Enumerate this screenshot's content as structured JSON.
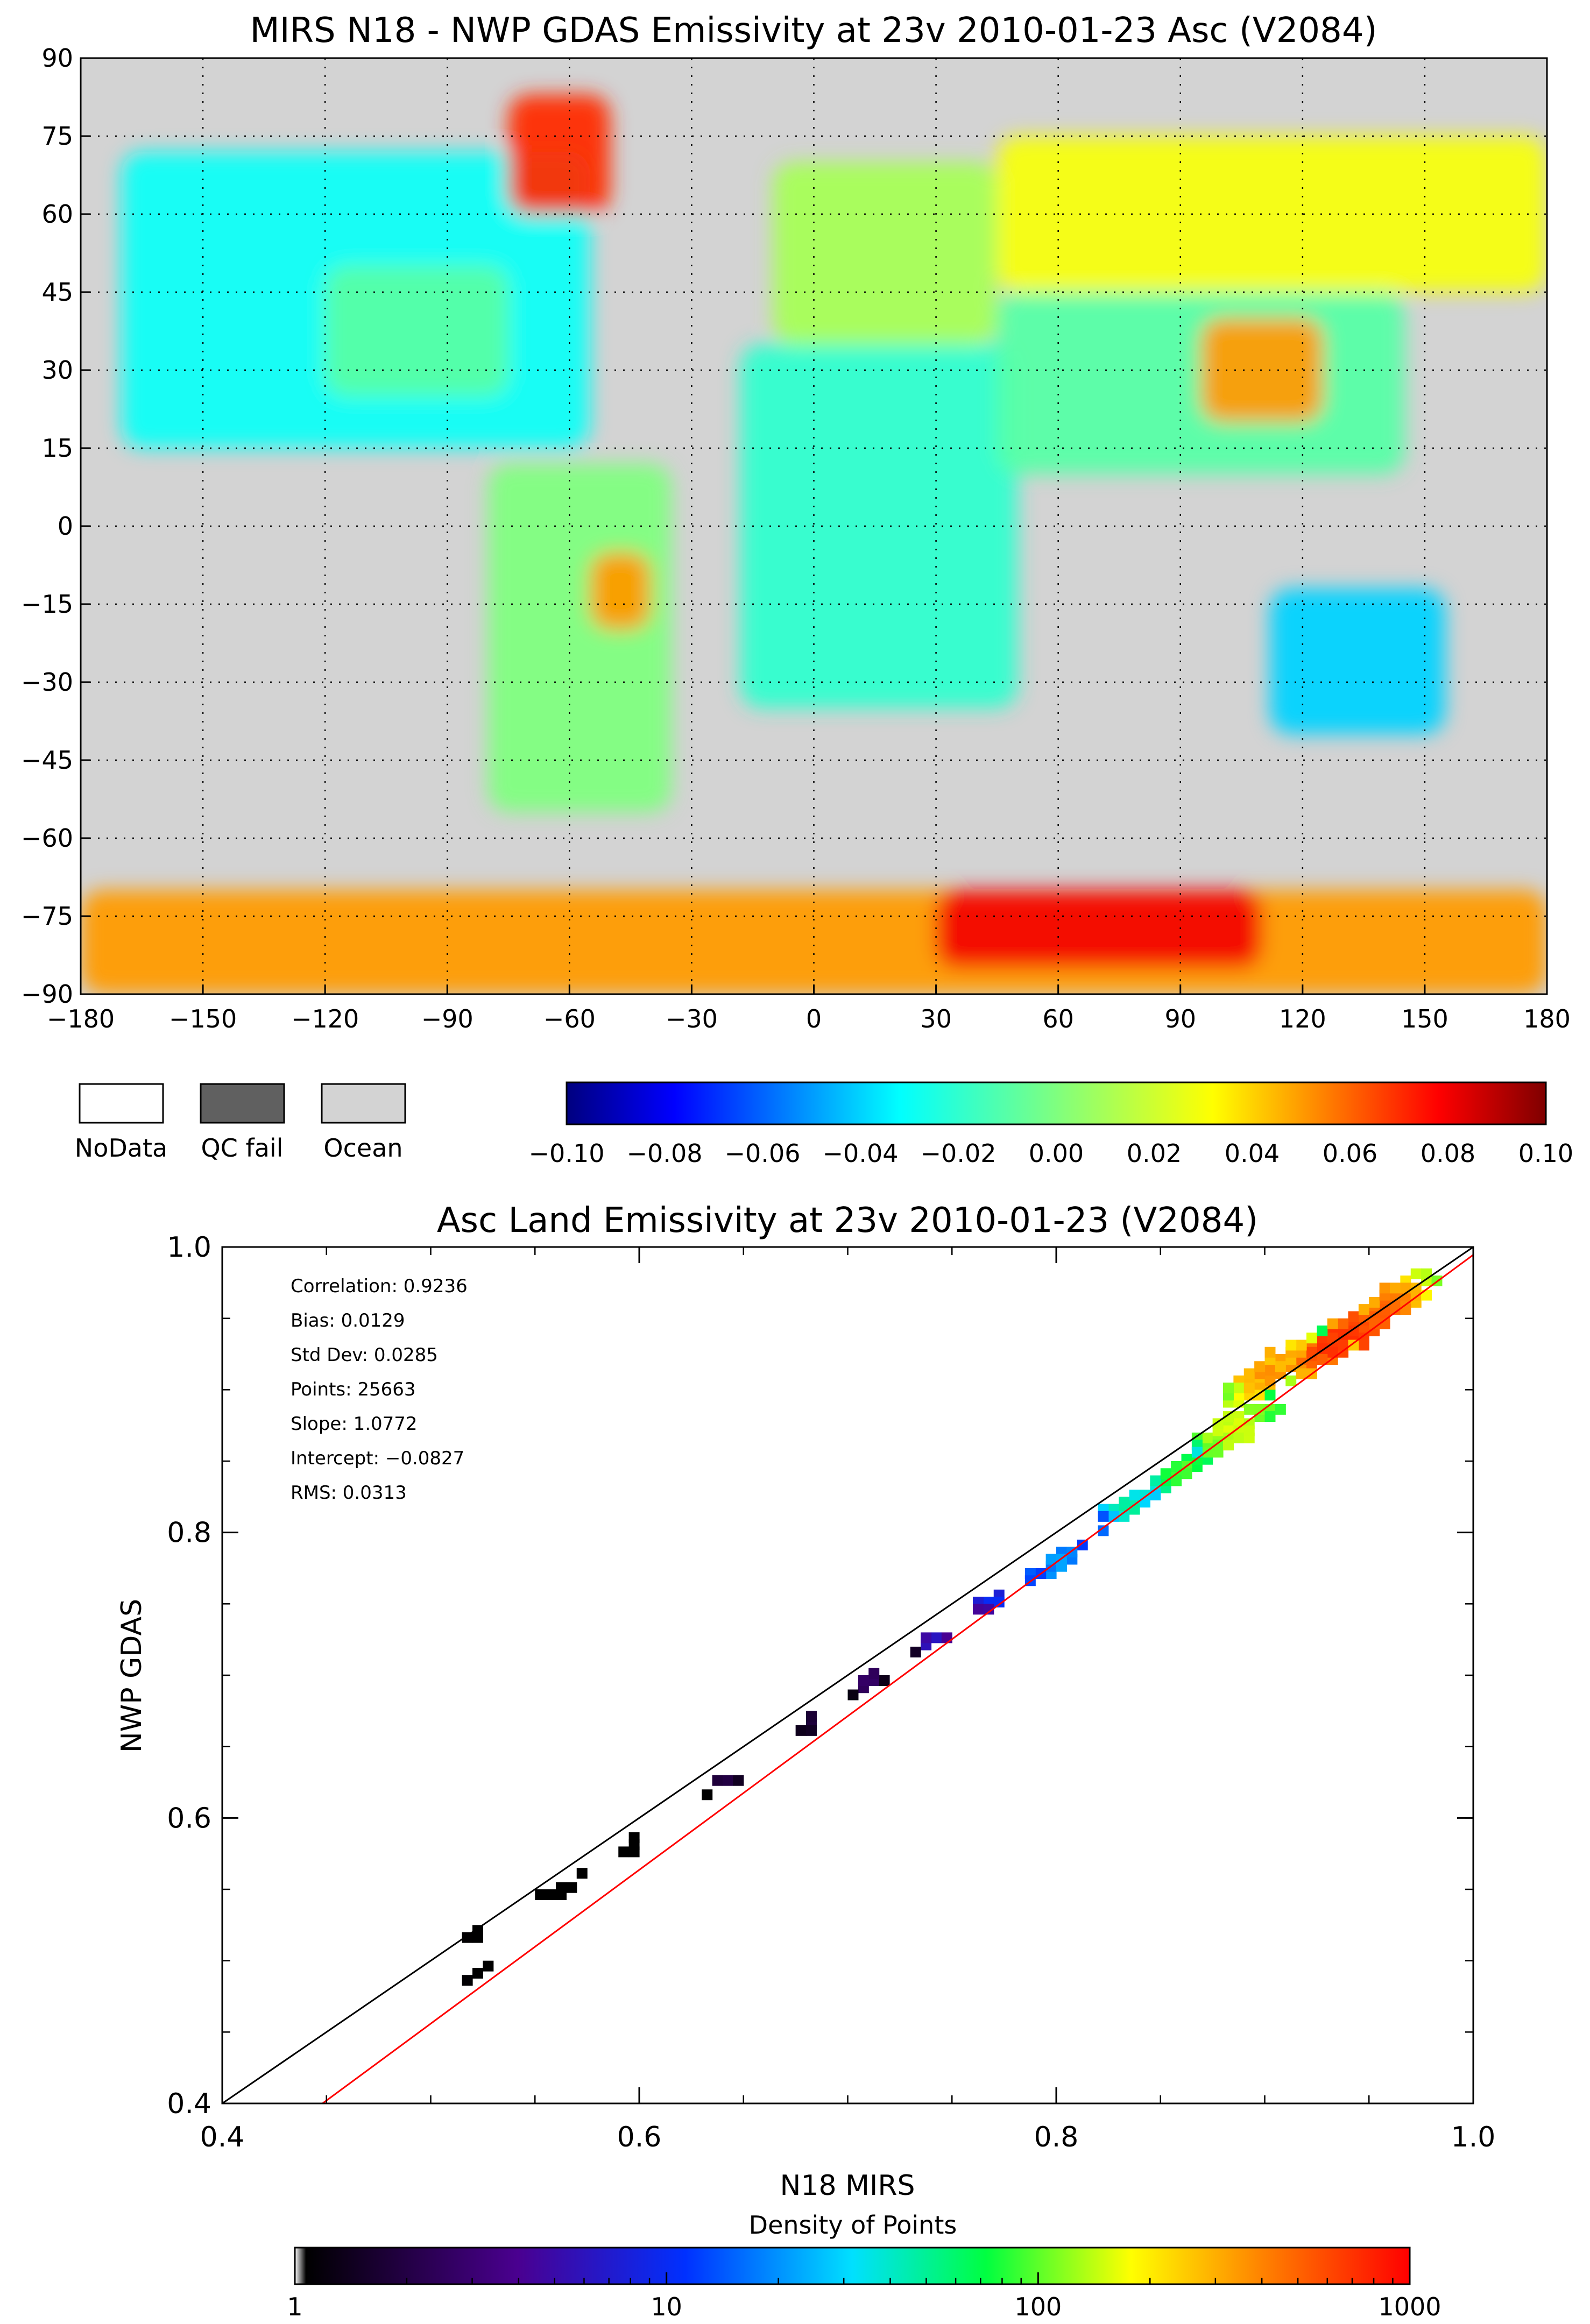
{
  "chart_data": [
    {
      "type": "heatmap",
      "subtype": "global-map",
      "title": "MIRS N18 - NWP GDAS Emissivity at 23v 2010-01-23 Asc (V2084)",
      "xlabel": "",
      "ylabel": "",
      "xlim": [
        -180,
        180
      ],
      "ylim": [
        -90,
        90
      ],
      "x_ticks": [
        -180,
        -150,
        -120,
        -90,
        -60,
        -30,
        0,
        30,
        60,
        90,
        120,
        150,
        180
      ],
      "x_tick_labels": [
        "−180",
        "−150",
        "−120",
        "−90",
        "−60",
        "−30",
        "0",
        "30",
        "60",
        "90",
        "120",
        "150",
        "180"
      ],
      "y_ticks": [
        90,
        75,
        60,
        45,
        30,
        15,
        0,
        -15,
        -30,
        -45,
        -60,
        -75,
        -90
      ],
      "y_tick_labels": [
        "90",
        "75",
        "60",
        "45",
        "30",
        "15",
        "0",
        "−15",
        "−30",
        "−45",
        "−60",
        "−75",
        "−90"
      ],
      "grid": true,
      "legend_boxes": [
        {
          "label": "NoData",
          "color": "#ffffff"
        },
        {
          "label": "QC fail",
          "color": "#606060"
        },
        {
          "label": "Ocean",
          "color": "#d3d3d3"
        }
      ],
      "colorbar": {
        "min": -0.1,
        "max": 0.1,
        "scale": "linear",
        "tick_values": [
          -0.1,
          -0.08,
          -0.06,
          -0.04,
          -0.02,
          0.0,
          0.02,
          0.04,
          0.06,
          0.08,
          0.1
        ],
        "tick_labels": [
          "−0.10",
          "−0.08",
          "−0.06",
          "−0.04",
          "−0.02",
          "0.00",
          "0.02",
          "0.04",
          "0.06",
          "0.08",
          "0.10"
        ]
      },
      "regions": [
        {
          "lon": [
            -170,
            -55
          ],
          "lat": [
            15,
            72
          ],
          "value": -0.03
        },
        {
          "lon": [
            -120,
            -75
          ],
          "lat": [
            25,
            50
          ],
          "value": -0.01
        },
        {
          "lon": [
            -75,
            -50
          ],
          "lat": [
            60,
            83
          ],
          "value": 0.07
        },
        {
          "lon": [
            -80,
            -35
          ],
          "lat": [
            -55,
            12
          ],
          "value": 0.0
        },
        {
          "lon": [
            -55,
            -40
          ],
          "lat": [
            -20,
            -5
          ],
          "value": 0.05
        },
        {
          "lon": [
            -10,
            45
          ],
          "lat": [
            35,
            70
          ],
          "value": 0.01
        },
        {
          "lon": [
            -18,
            50
          ],
          "lat": [
            -35,
            35
          ],
          "value": -0.02
        },
        {
          "lon": [
            45,
            180
          ],
          "lat": [
            45,
            75
          ],
          "value": 0.03
        },
        {
          "lon": [
            45,
            145
          ],
          "lat": [
            10,
            45
          ],
          "value": -0.01
        },
        {
          "lon": [
            95,
            125
          ],
          "lat": [
            20,
            40
          ],
          "value": 0.05
        },
        {
          "lon": [
            112,
            155
          ],
          "lat": [
            -40,
            -12
          ],
          "value": -0.04
        },
        {
          "lon": [
            -180,
            180
          ],
          "lat": [
            -90,
            -70
          ],
          "value": 0.05
        },
        {
          "lon": [
            30,
            110
          ],
          "lat": [
            -85,
            -70
          ],
          "value": 0.08
        }
      ]
    },
    {
      "type": "scatter",
      "subtype": "density",
      "title": "Asc Land Emissivity at 23v 2010-01-23 (V2084)",
      "xlabel": "N18 MIRS",
      "ylabel": "NWP GDAS",
      "xlim": [
        0.4,
        1.0
      ],
      "ylim": [
        0.4,
        1.0
      ],
      "x_ticks": [
        0.4,
        0.6,
        0.8,
        1.0
      ],
      "x_tick_labels": [
        "0.4",
        "0.6",
        "0.8",
        "1.0"
      ],
      "y_ticks": [
        0.4,
        0.6,
        0.8,
        1.0
      ],
      "y_tick_labels": [
        "0.4",
        "0.6",
        "0.8",
        "1.0"
      ],
      "stats": [
        "Correlation: 0.9236",
        "Bias: 0.0129",
        "Std Dev: 0.0285",
        "Points: 25663",
        "Slope: 1.0772",
        "Intercept: −0.0827",
        "RMS: 0.0313"
      ],
      "lines": [
        {
          "name": "1:1 line",
          "color": "#000000",
          "x": [
            0.4,
            1.0
          ],
          "y": [
            0.4,
            1.0
          ]
        },
        {
          "name": "regression",
          "color": "#ff0000",
          "slope": 1.0772,
          "intercept": -0.0827
        }
      ],
      "clusters": [
        {
          "x": 0.935,
          "y": 0.935,
          "count": 700
        },
        {
          "x": 0.905,
          "y": 0.915,
          "count": 350
        },
        {
          "x": 0.955,
          "y": 0.955,
          "count": 500
        },
        {
          "x": 0.885,
          "y": 0.875,
          "count": 150
        },
        {
          "x": 0.86,
          "y": 0.845,
          "count": 90
        },
        {
          "x": 0.835,
          "y": 0.82,
          "count": 45
        },
        {
          "x": 0.8,
          "y": 0.78,
          "count": 22
        },
        {
          "x": 0.77,
          "y": 0.755,
          "count": 10
        },
        {
          "x": 0.74,
          "y": 0.725,
          "count": 6
        },
        {
          "x": 0.71,
          "y": 0.695,
          "count": 3
        },
        {
          "x": 0.68,
          "y": 0.665,
          "count": 2
        },
        {
          "x": 0.64,
          "y": 0.625,
          "count": 2
        },
        {
          "x": 0.6,
          "y": 0.585,
          "count": 1
        },
        {
          "x": 0.56,
          "y": 0.55,
          "count": 1
        },
        {
          "x": 0.52,
          "y": 0.52,
          "count": 1
        },
        {
          "x": 0.52,
          "y": 0.49,
          "count": 1
        }
      ],
      "colorbar": {
        "title": "Density of Points",
        "min": 1,
        "max": 1000,
        "scale": "log",
        "tick_values": [
          1,
          10,
          100,
          1000
        ],
        "tick_labels": [
          "1",
          "10",
          "100",
          "1000"
        ]
      }
    }
  ]
}
